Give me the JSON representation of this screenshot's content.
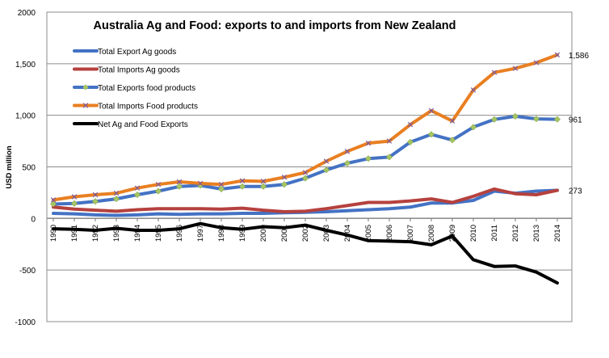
{
  "chart_data": {
    "type": "line",
    "title": "Australia Ag and Food: exports  to and imports from New Zealand",
    "xlabel": "",
    "ylabel": "USD million",
    "ylim": [
      -1000,
      2000
    ],
    "yticks": [
      -1000,
      -500,
      0,
      500,
      1000,
      1500,
      2000
    ],
    "ytick_labels": [
      "-1000",
      "-500",
      "0",
      "500",
      "1,000",
      "1,500",
      "2000"
    ],
    "grid": "horizontal",
    "legend_position": "top-left",
    "categories": [
      "1990",
      "1991",
      "1992",
      "1993",
      "1994",
      "1995",
      "1996",
      "1997",
      "1998",
      "1999",
      "2000",
      "2001",
      "2002",
      "2003",
      "2004",
      "2005",
      "2006",
      "2007",
      "2008",
      "2009",
      "2010",
      "2011",
      "2012",
      "2013",
      "2014"
    ],
    "series": [
      {
        "name": "Total Export Ag goods",
        "color": "#4472C4",
        "marker": "none",
        "values": [
          50,
          45,
          35,
          30,
          35,
          45,
          40,
          45,
          45,
          50,
          50,
          55,
          60,
          65,
          75,
          85,
          95,
          110,
          150,
          150,
          175,
          265,
          245,
          265,
          273
        ]
      },
      {
        "name": "Total Imports Ag goods",
        "color": "#B5413E",
        "marker": "none",
        "values": [
          110,
          90,
          80,
          70,
          85,
          95,
          95,
          95,
          90,
          100,
          80,
          65,
          70,
          95,
          125,
          155,
          155,
          170,
          190,
          155,
          215,
          285,
          240,
          230,
          273
        ]
      },
      {
        "name": "Total Exports food products",
        "color": "#4472C4",
        "marker": "diamond",
        "marker_color": "#A6C663",
        "values": [
          140,
          145,
          165,
          190,
          230,
          265,
          310,
          320,
          285,
          310,
          310,
          330,
          390,
          470,
          535,
          580,
          595,
          740,
          815,
          760,
          885,
          960,
          990,
          965,
          961
        ]
      },
      {
        "name": "Total Imports Food products",
        "color": "#E97F21",
        "marker": "x",
        "marker_color": "#7A5AA0",
        "values": [
          180,
          210,
          230,
          245,
          295,
          330,
          355,
          340,
          330,
          365,
          360,
          400,
          445,
          555,
          650,
          730,
          750,
          910,
          1045,
          945,
          1245,
          1415,
          1455,
          1510,
          1586
        ]
      },
      {
        "name": "Net Ag and Food Exports",
        "color": "#000000",
        "marker": "none",
        "values": [
          -100,
          -105,
          -115,
          -95,
          -115,
          -115,
          -100,
          -50,
          -90,
          -105,
          -80,
          -90,
          -65,
          -115,
          -160,
          -215,
          -220,
          -225,
          -255,
          -170,
          -400,
          -465,
          -460,
          -520,
          -625
        ]
      }
    ],
    "annotations": [
      {
        "text": "1,586",
        "series": "Total Imports Food products",
        "x": "2014",
        "y": 1586
      },
      {
        "text": "961",
        "series": "Total Exports food products",
        "x": "2014",
        "y": 961
      },
      {
        "text": "273",
        "series": "Total Export Ag goods",
        "x": "2014",
        "y": 273
      }
    ]
  }
}
